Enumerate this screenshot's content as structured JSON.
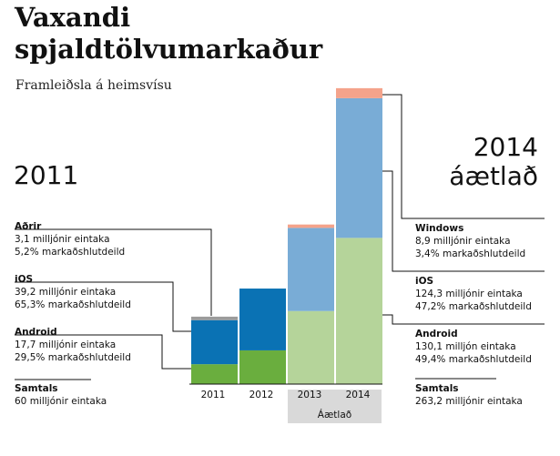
{
  "title_lines": [
    "Vaxandi",
    "spjaldtölvumarkaður"
  ],
  "subtitle": "Framleiðsla á heimsvísu",
  "label_2011": "2011",
  "label_2014": [
    "2014",
    "áætlað"
  ],
  "forecast_label": "Áætlað",
  "colors": {
    "android_2011": "#6aae3e",
    "ios_2011": "#0a72b4",
    "others_2011": "#9b9b9b",
    "android_forecast": "#b5d49a",
    "ios_forecast": "#79acd6",
    "others_forecast": "#f4a38b",
    "forecast_band": "#d9d9d9"
  },
  "annotations_left": {
    "others": {
      "name": "Aðrir",
      "line1": "3,1 milljónir eintaka",
      "line2": "5,2% markaðshlutdeild"
    },
    "ios": {
      "name": "iOS",
      "line1": "39,2 milljónir eintaka",
      "line2": "65,3% markaðshlutdeild"
    },
    "android": {
      "name": "Android",
      "line1": "17,7 milljónir eintaka",
      "line2": "29,5% markaðshlutdeild"
    },
    "total": {
      "name": "Samtals",
      "line1": "60 milljónir eintaka"
    }
  },
  "annotations_right": {
    "windows": {
      "name": "Windows",
      "line1": "8,9 milljónir eintaka",
      "line2": "3,4% markaðshlutdeild"
    },
    "ios": {
      "name": "iOS",
      "line1": "124,3 milljónir eintaka",
      "line2": "47,2% markaðshlutdeild"
    },
    "android": {
      "name": "Android",
      "line1": "130,1 milljón eintaka",
      "line2": "49,4% markaðshlutdeild"
    },
    "total": {
      "name": "Samtals",
      "line1": "263,2 milljónir eintaka"
    }
  },
  "chart_data": {
    "type": "bar",
    "stacked": true,
    "title": "Vaxandi spjaldtölvumarkaður",
    "subtitle": "Framleiðsla á heimsvísu",
    "categories": [
      "2011",
      "2012",
      "2013",
      "2014"
    ],
    "forecast_categories": [
      "2013",
      "2014"
    ],
    "unit": "milljónir eintaka",
    "ylim": [
      0,
      263.2
    ],
    "series": [
      {
        "name": "Android",
        "values": [
          17.7,
          30,
          65,
          130.1
        ]
      },
      {
        "name": "iOS",
        "values": [
          39.2,
          55,
          74,
          124.3
        ]
      },
      {
        "name": "Aðrir",
        "values": [
          3.1,
          0,
          3,
          0
        ]
      },
      {
        "name": "Windows",
        "values": [
          0,
          0,
          0,
          8.9
        ]
      }
    ]
  }
}
